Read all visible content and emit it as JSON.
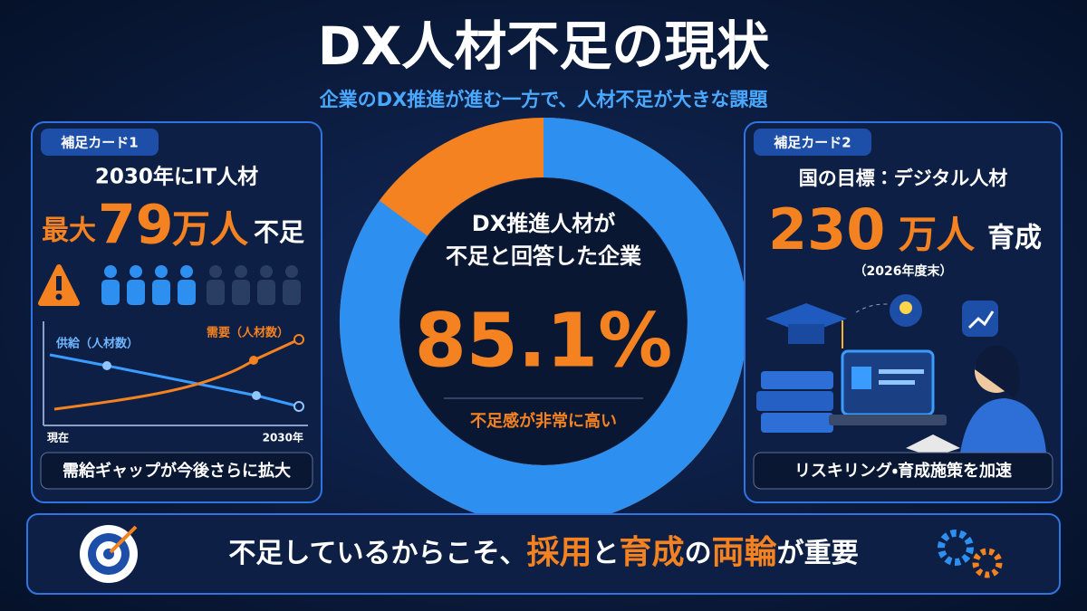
{
  "header": {
    "title": "DX人材不足の現状",
    "subtitle": "企業のDX推進が進む一方で、人材不足が大きな課題"
  },
  "card1": {
    "tag": "補足カード1",
    "line1": "2030年にIT人材",
    "prefix": "最大",
    "figure": "79",
    "unit": "万人",
    "suffix": "不足",
    "chart": {
      "supply_label": "供給（人材数）",
      "demand_label": "需要（人材数）",
      "x_start": "現在",
      "x_end": "2030年"
    },
    "note": "需給ギャップが今後さらに拡大"
  },
  "center": {
    "caption": [
      "DX推進人材が",
      "不足と回答した企業"
    ],
    "value": 85.1,
    "value_label": "85.1%",
    "remark": "不足感が非常に高い"
  },
  "card2": {
    "tag": "補足カード2",
    "line1": "国の目標：デジタル人材",
    "figure": "230",
    "unit": "万人",
    "suffix": "育成",
    "period": "（2026年度末）",
    "note": "リスキリング・育成施策を加速"
  },
  "footer": {
    "parts": [
      "不足しているからこそ、",
      "採用",
      "と",
      "育成",
      "の",
      "両輪",
      "が重要"
    ]
  }
}
